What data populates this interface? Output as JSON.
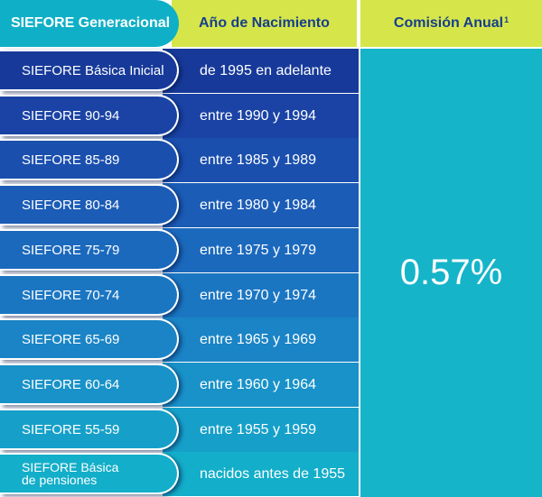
{
  "header": {
    "col1": "SIEFORE Generacional",
    "col2": "Año de Nacimiento",
    "col3": "Comisión Anual",
    "col3_sup": "1"
  },
  "fee": "0.57%",
  "rows": [
    {
      "siefore": "SIEFORE Básica Inicial",
      "years": "de 1995 en adelante",
      "color": "#173a9a"
    },
    {
      "siefore": "SIEFORE 90-94",
      "years": "entre 1990 y 1994",
      "color": "#1a43a5"
    },
    {
      "siefore": "SIEFORE 85-89",
      "years": "entre 1985 y 1989",
      "color": "#1a4fae"
    },
    {
      "siefore": "SIEFORE 80-84",
      "years": "entre 1980 y 1984",
      "color": "#1b5cb6"
    },
    {
      "siefore": "SIEFORE 75-79",
      "years": "entre 1975 y 1979",
      "color": "#1b69bd"
    },
    {
      "siefore": "SIEFORE 70-74",
      "years": "entre 1970 y 1974",
      "color": "#1b76c2"
    },
    {
      "siefore": "SIEFORE 65-69",
      "years": "entre 1965 y 1969",
      "color": "#1a84c6"
    },
    {
      "siefore": "SIEFORE 60-64",
      "years": "entre 1960 y 1964",
      "color": "#1892c8"
    },
    {
      "siefore": "SIEFORE 55-59",
      "years": "entre 1955 y 1959",
      "color": "#16a0c9"
    },
    {
      "siefore": "SIEFORE Básica\nde pensiones",
      "years": "nacidos antes de 1955",
      "color": "#13aec9"
    }
  ]
}
